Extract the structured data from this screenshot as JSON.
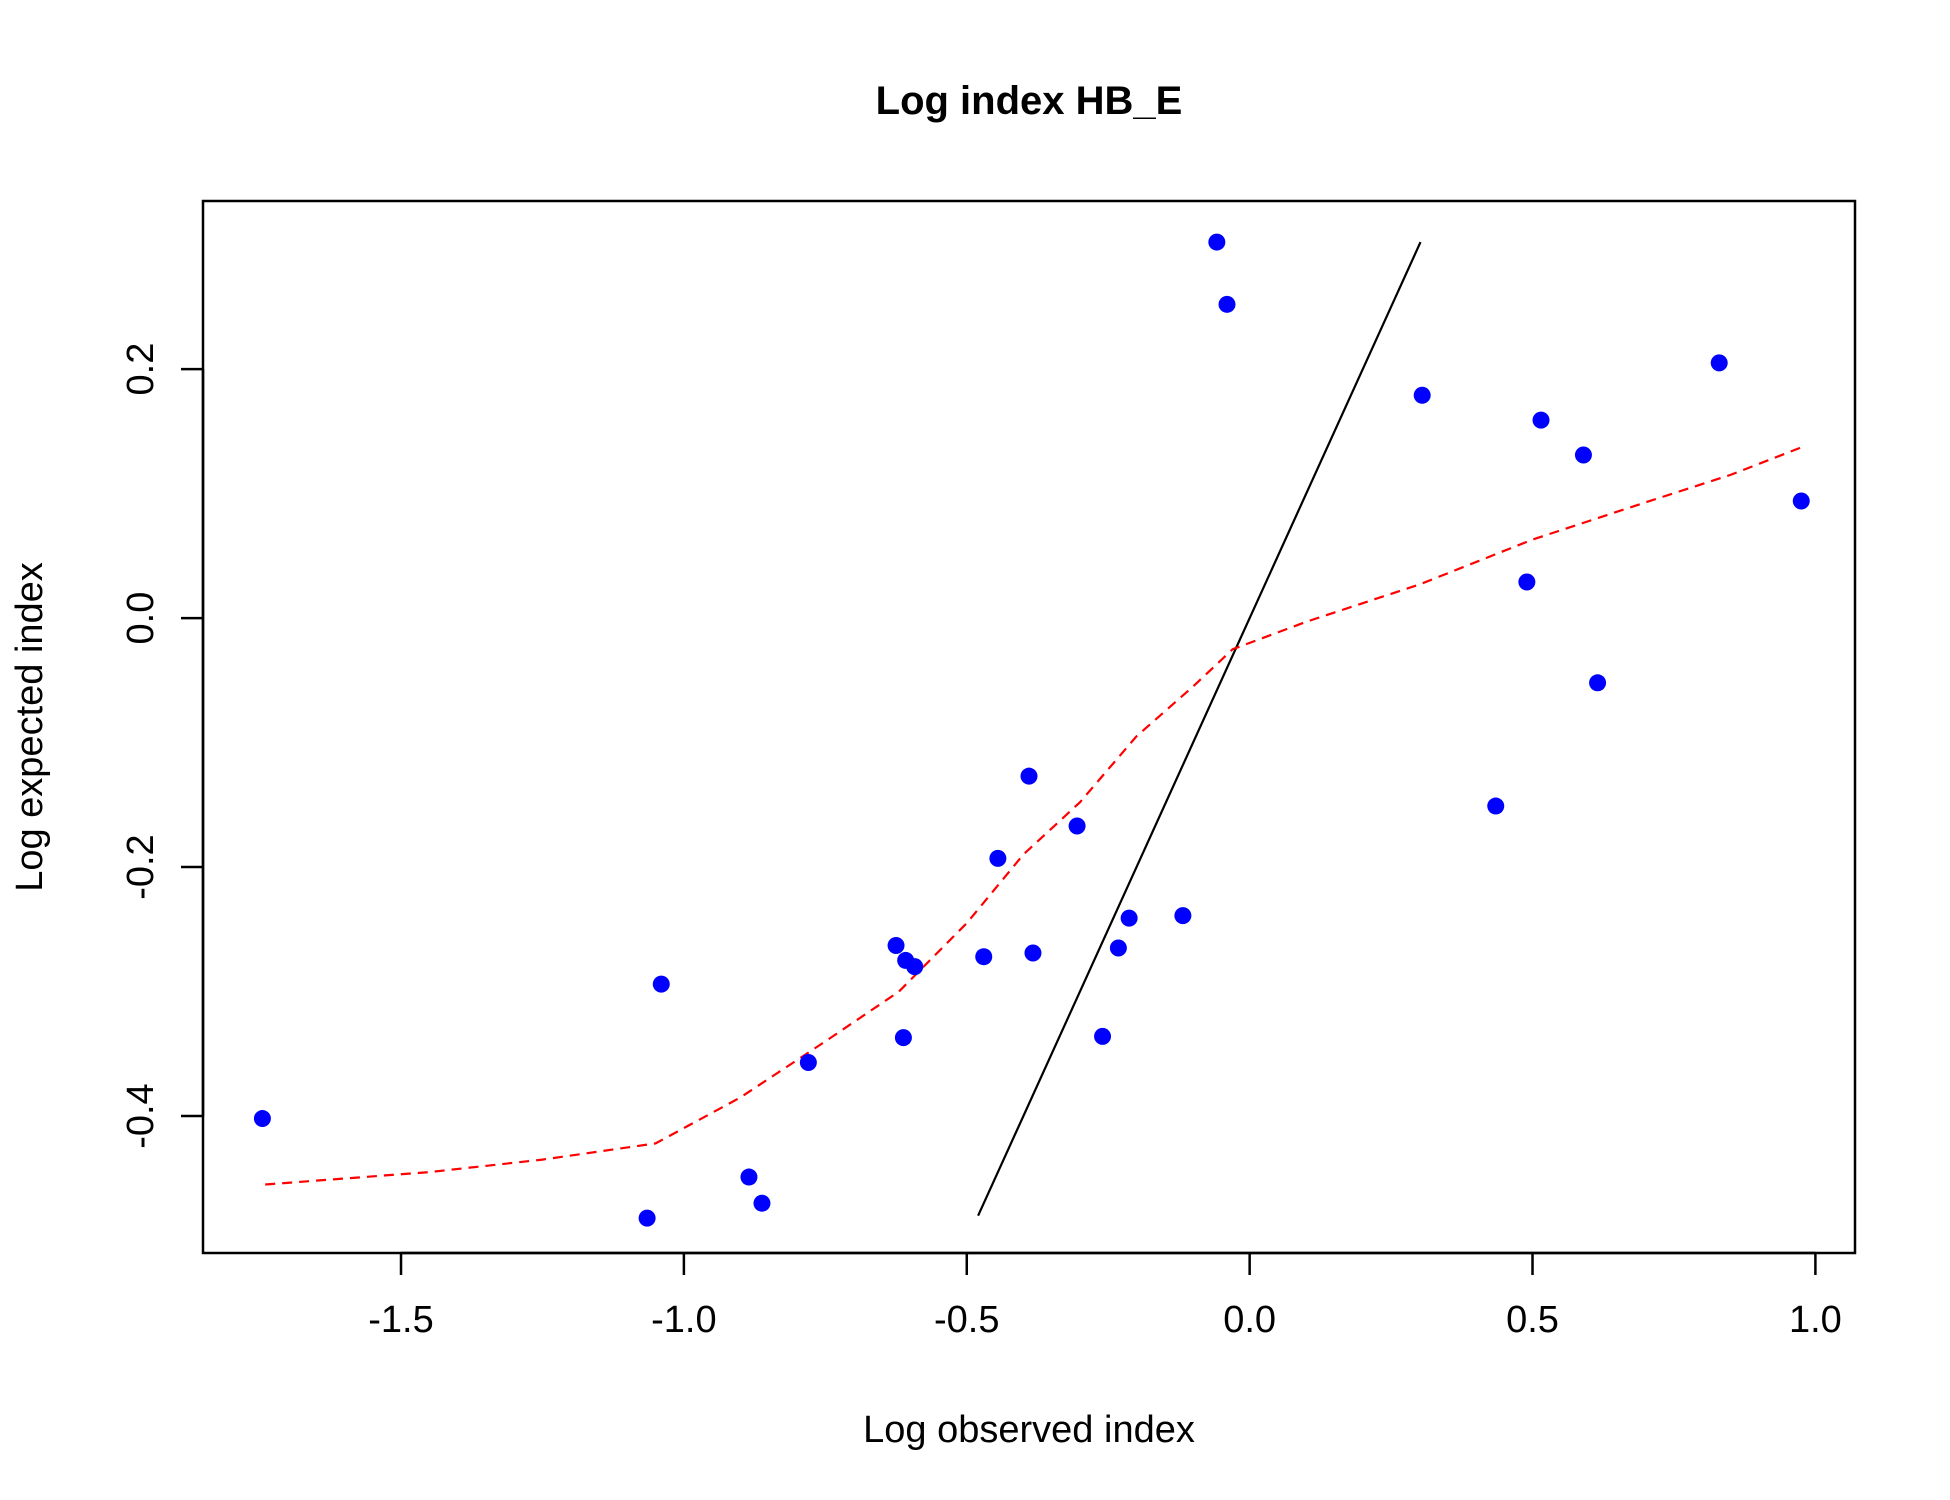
{
  "chart_data": {
    "type": "scatter",
    "title": "Log index HB_E",
    "xlabel": "Log observed index",
    "ylabel": "Log expected index",
    "xlim": [
      -1.85,
      1.07
    ],
    "ylim": [
      -0.51,
      0.335
    ],
    "x_ticks": [
      -1.5,
      -1.0,
      -0.5,
      0.0,
      0.5,
      1.0
    ],
    "x_tick_labels": [
      "-1.5",
      "-1.0",
      "-0.5",
      "0.0",
      "0.5",
      "1.0"
    ],
    "y_ticks": [
      -0.4,
      -0.2,
      0.0,
      0.2
    ],
    "y_tick_labels": [
      "-0.4",
      "-0.2",
      "0.0",
      "0.2"
    ],
    "grid": false,
    "colors": {
      "points": "#0000ff",
      "reference": "#000000",
      "smooth": "#ff0000"
    },
    "series": [
      {
        "type": "scatter",
        "points": [
          [
            -1.745,
            -0.402
          ],
          [
            -1.065,
            -0.482
          ],
          [
            -1.04,
            -0.294
          ],
          [
            -0.885,
            -0.449
          ],
          [
            -0.862,
            -0.47
          ],
          [
            -0.78,
            -0.357
          ],
          [
            -0.625,
            -0.263
          ],
          [
            -0.608,
            -0.275
          ],
          [
            -0.612,
            -0.337
          ],
          [
            -0.592,
            -0.28
          ],
          [
            -0.47,
            -0.272
          ],
          [
            -0.445,
            -0.193
          ],
          [
            -0.39,
            -0.127
          ],
          [
            -0.383,
            -0.269
          ],
          [
            -0.305,
            -0.167
          ],
          [
            -0.26,
            -0.336
          ],
          [
            -0.232,
            -0.265
          ],
          [
            -0.213,
            -0.241
          ],
          [
            -0.118,
            -0.239
          ],
          [
            -0.058,
            0.302
          ],
          [
            -0.04,
            0.252
          ],
          [
            0.305,
            0.179
          ],
          [
            0.435,
            -0.151
          ],
          [
            0.49,
            0.029
          ],
          [
            0.515,
            0.159
          ],
          [
            0.59,
            0.131
          ],
          [
            0.615,
            -0.052
          ],
          [
            0.83,
            0.205
          ],
          [
            0.975,
            0.094
          ]
        ]
      },
      {
        "type": "line",
        "style": "solid",
        "points": [
          [
            -0.48,
            -0.48
          ],
          [
            0.302,
            0.302
          ]
        ]
      },
      {
        "type": "line",
        "style": "dashed",
        "points": [
          [
            -1.74,
            -0.455
          ],
          [
            -1.45,
            -0.445
          ],
          [
            -1.25,
            -0.435
          ],
          [
            -1.05,
            -0.422
          ],
          [
            -0.9,
            -0.385
          ],
          [
            -0.75,
            -0.34
          ],
          [
            -0.62,
            -0.3
          ],
          [
            -0.5,
            -0.245
          ],
          [
            -0.4,
            -0.19
          ],
          [
            -0.3,
            -0.148
          ],
          [
            -0.2,
            -0.095
          ],
          [
            -0.1,
            -0.055
          ],
          [
            -0.03,
            -0.025
          ],
          [
            0.1,
            -0.003
          ],
          [
            0.3,
            0.027
          ],
          [
            0.5,
            0.063
          ],
          [
            0.7,
            0.093
          ],
          [
            0.85,
            0.115
          ],
          [
            0.98,
            0.138
          ]
        ]
      }
    ]
  }
}
